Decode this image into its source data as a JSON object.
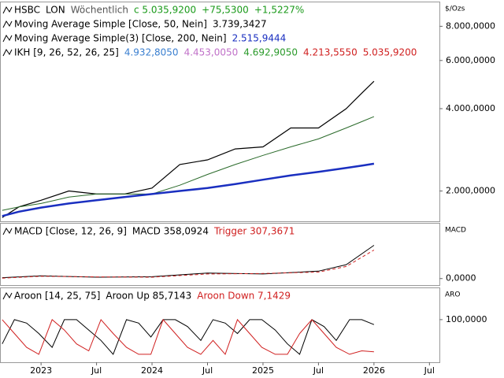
{
  "chart_data": [
    {
      "type": "line",
      "log_scale": true,
      "y_label": "$/Ozs",
      "legend_rows": [
        [
          {
            "text": "HSBC",
            "color": "#000000"
          },
          {
            "text": "LON",
            "color": "#000000"
          },
          {
            "text": "Wöchentlich",
            "color": "#555555"
          },
          {
            "text": "c 5.035,9200",
            "color": "#1a9a1a"
          },
          {
            "text": "+75,5300",
            "color": "#1a9a1a"
          },
          {
            "text": "+1,5227%",
            "color": "#1a9a1a"
          }
        ],
        [
          {
            "text": "Moving Average Simple [Close, 50, Nein]",
            "color": "#000000"
          },
          {
            "text": "3.739,3427",
            "color": "#000000"
          }
        ],
        [
          {
            "text": "Moving Average Simple(3) [Close, 200, Nein]",
            "color": "#000000"
          },
          {
            "text": "2.515,9444",
            "color": "#1a2fc0"
          }
        ],
        [
          {
            "text": "IKH [9, 26, 52, 26, 25]",
            "color": "#000000"
          },
          {
            "text": "4.932,8050",
            "color": "#3a7fd0"
          },
          {
            "text": "4.453,0050",
            "color": "#c070c8"
          },
          {
            "text": "4.692,9050",
            "color": "#2a9a2a"
          },
          {
            "text": "4.213,5550",
            "color": "#d02020"
          },
          {
            "text": "5.035,9200",
            "color": "#d02020"
          }
        ]
      ],
      "x": [
        2022.65,
        2022.8,
        2023.0,
        2023.25,
        2023.5,
        2023.75,
        2024.0,
        2024.25,
        2024.5,
        2024.75,
        2025.0,
        2025.25,
        2025.5,
        2025.75,
        2025.9,
        2026.0
      ],
      "series": [
        {
          "color": "#000000",
          "width": 1.2,
          "values": [
            1600000,
            1750000,
            1850000,
            2000000,
            1950000,
            1950000,
            2050000,
            2500000,
            2600000,
            2850000,
            2900000,
            3400000,
            3400000,
            4000000,
            4600000,
            5035920
          ]
        },
        {
          "color": "#2a6a2a",
          "width": 1,
          "values": [
            1700000,
            1750000,
            1800000,
            1900000,
            1950000,
            1950000,
            1950000,
            2100000,
            2300000,
            2500000,
            2700000,
            2900000,
            3100000,
            3400000,
            3600000,
            3739343
          ]
        },
        {
          "color": "#1a2fc0",
          "width": 2.5,
          "values": [
            1620000,
            1680000,
            1740000,
            1800000,
            1850000,
            1900000,
            1950000,
            2000000,
            2050000,
            2120000,
            2200000,
            2280000,
            2350000,
            2430000,
            2480000,
            2515944
          ]
        }
      ],
      "ylim": [
        1550000,
        9850000
      ],
      "yticks": [
        {
          "value": 2000000,
          "label": "2.000,0000"
        },
        {
          "value": 4000000,
          "label": "4.000,0000"
        },
        {
          "value": 6000000,
          "label": "6.000,0000"
        },
        {
          "value": 8000000,
          "label": "8.000,0000"
        }
      ]
    },
    {
      "type": "line",
      "y_label": "MACD",
      "legend_rows": [
        [
          {
            "text": "MACD [Close, 12, 26, 9]",
            "color": "#000000"
          },
          {
            "text": "MACD 358,0924",
            "color": "#000000"
          },
          {
            "text": "Trigger 307,3671",
            "color": "#d02020"
          }
        ]
      ],
      "x": [
        2022.65,
        2023.0,
        2023.5,
        2024.0,
        2024.5,
        2025.0,
        2025.5,
        2025.75,
        2026.0
      ],
      "series": [
        {
          "color": "#000000",
          "width": 1,
          "values": [
            10,
            30,
            15,
            20,
            60,
            50,
            80,
            150,
            358.0924
          ]
        },
        {
          "color": "#d02020",
          "width": 1,
          "dash": true,
          "values": [
            5,
            25,
            18,
            15,
            50,
            55,
            70,
            130,
            307.3671
          ]
        }
      ],
      "ylim": [
        -70,
        600
      ],
      "yticks": [
        {
          "value": 0,
          "label": "0,0000"
        }
      ]
    },
    {
      "type": "line",
      "y_label": "ARO",
      "legend_rows": [
        [
          {
            "text": "Aroon [14, 25, 75]",
            "color": "#000000"
          },
          {
            "text": "Aroon Up 85,7143",
            "color": "#000000"
          },
          {
            "text": "Aroon Down 7,1429",
            "color": "#d02020"
          }
        ]
      ],
      "x": [
        2022.65,
        2022.76,
        2022.87,
        2022.98,
        2023.1,
        2023.21,
        2023.32,
        2023.43,
        2023.54,
        2023.65,
        2023.77,
        2023.88,
        2023.99,
        2024.1,
        2024.21,
        2024.32,
        2024.44,
        2024.55,
        2024.66,
        2024.77,
        2024.88,
        2024.99,
        2025.11,
        2025.22,
        2025.33,
        2025.44,
        2025.55,
        2025.66,
        2025.78,
        2025.89,
        2026.0
      ],
      "series": [
        {
          "color": "#000000",
          "width": 1,
          "values": [
            30,
            100,
            90,
            60,
            20,
            100,
            100,
            70,
            40,
            0,
            100,
            90,
            50,
            100,
            100,
            80,
            40,
            100,
            90,
            60,
            100,
            100,
            70,
            30,
            0,
            100,
            80,
            40,
            100,
            100,
            85.7143
          ]
        },
        {
          "color": "#d02020",
          "width": 1,
          "values": [
            100,
            60,
            20,
            0,
            100,
            70,
            30,
            10,
            100,
            60,
            20,
            0,
            0,
            100,
            60,
            20,
            0,
            40,
            0,
            100,
            60,
            20,
            0,
            0,
            60,
            100,
            60,
            20,
            0,
            10,
            7.1429
          ]
        }
      ],
      "ylim": [
        -23,
        193
      ],
      "yticks": [
        {
          "value": 100,
          "label": "100,0000"
        }
      ],
      "xlim": [
        2022.63,
        2026.59
      ],
      "xticks": [
        {
          "value": 2023,
          "label": "2023"
        },
        {
          "value": 2023.5,
          "label": "Jul"
        },
        {
          "value": 2024,
          "label": "2024"
        },
        {
          "value": 2024.5,
          "label": "Jul"
        },
        {
          "value": 2025,
          "label": "2025"
        },
        {
          "value": 2025.5,
          "label": "Jul"
        },
        {
          "value": 2026,
          "label": "2026"
        },
        {
          "value": 2026.5,
          "label": "Jul"
        }
      ]
    }
  ]
}
